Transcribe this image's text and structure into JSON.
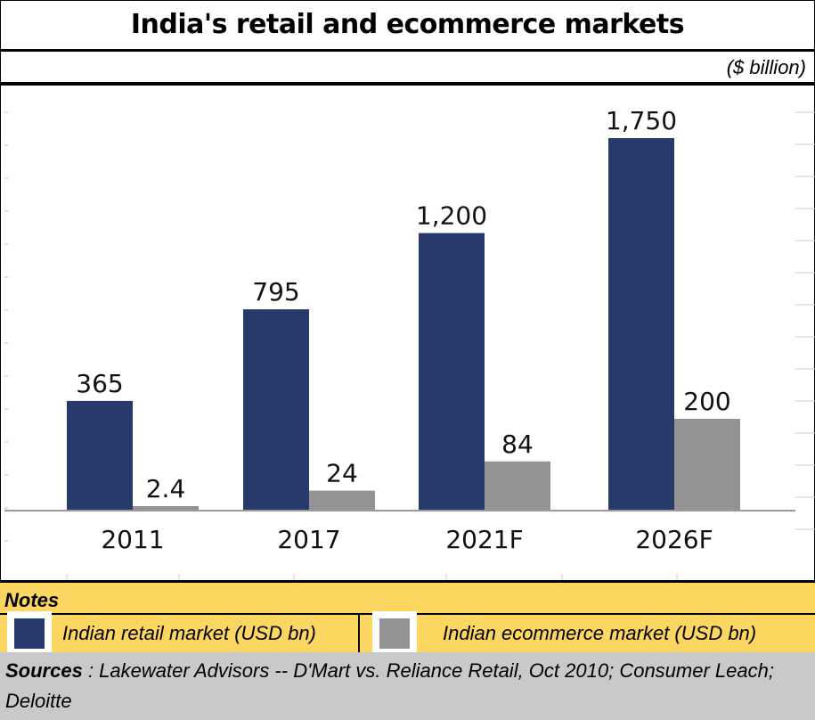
{
  "header": {
    "title": "India's retail and ecommerce markets",
    "unit": "($ billion)"
  },
  "notes": {
    "label": "Notes",
    "legend": [
      {
        "label": "Indian retail market (USD bn)",
        "color": "#283a6b"
      },
      {
        "label": "Indian ecommerce market (USD bn)",
        "color": "#939395"
      }
    ]
  },
  "sources": {
    "label": "Sources",
    "text": " : Lakewater Advisors -- D'Mart vs. Reliance Retail, Oct 2010; Consumer Leach; Deloitte"
  },
  "chart_data": {
    "type": "bar",
    "title": "India's retail and ecommerce markets",
    "ylabel": "($ billion)",
    "xlabel": "",
    "categories": [
      "2011",
      "2017",
      "2021F",
      "2026F"
    ],
    "series": [
      {
        "name": "Indian retail market (USD bn)",
        "color": "#283a6b",
        "values": [
          365,
          795,
          1200,
          1750
        ],
        "labels": [
          "365",
          "795",
          "1,200",
          "1,750"
        ]
      },
      {
        "name": "Indian ecommerce market (USD bn)",
        "color": "#939395",
        "values": [
          2.4,
          24,
          84,
          200
        ],
        "labels": [
          "2.4",
          "24",
          "84",
          "200"
        ]
      }
    ],
    "grid": false,
    "legend": "bottom"
  }
}
